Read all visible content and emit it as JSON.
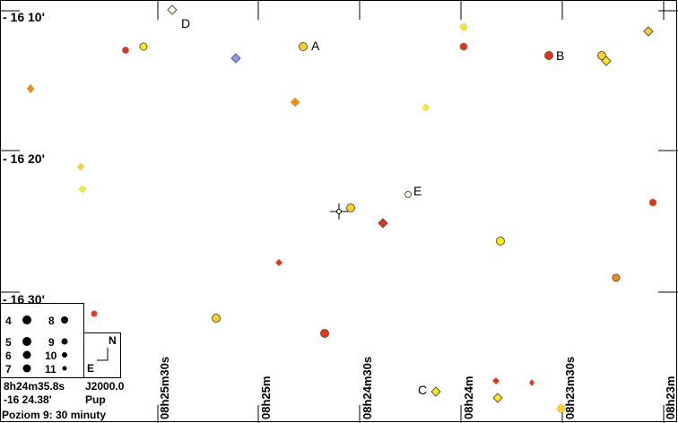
{
  "dec_labels": [
    "- 16 10'",
    "- 16 20'",
    "- 16 30'"
  ],
  "ra_labels": [
    "08h25m30s",
    "08h25m",
    "08h24m30s",
    "08h24m",
    "08h23m30s",
    "08h23m"
  ],
  "star_labels": [
    "A",
    "B",
    "C",
    "D",
    "E"
  ],
  "legend": {
    "entries": [
      {
        "label_left": "4",
        "label_right": "8"
      },
      {
        "label_left": "5",
        "label_right": "9"
      },
      {
        "label_left": "6",
        "label_right": "10"
      },
      {
        "label_left": "7",
        "label_right": "11"
      }
    ],
    "compass_north": "N",
    "compass_east": "E"
  },
  "info": {
    "ra": "8h24m35.8s",
    "epoch": "J2000.0",
    "dec": "-16 24.38'",
    "constellation": "Pup",
    "level": "Poziom 9: 30 minuty"
  },
  "chart_data": {
    "type": "scatter",
    "center": {
      "ra": "8h24m35.8s",
      "dec": "-16 24.38'"
    },
    "colors": {
      "yellow": "#ffee00",
      "gold": "#ffd21e",
      "orange": "#ff8a00",
      "red": "#f03010",
      "blue": "#8c96ff",
      "white": "#fffbe0"
    }
  }
}
